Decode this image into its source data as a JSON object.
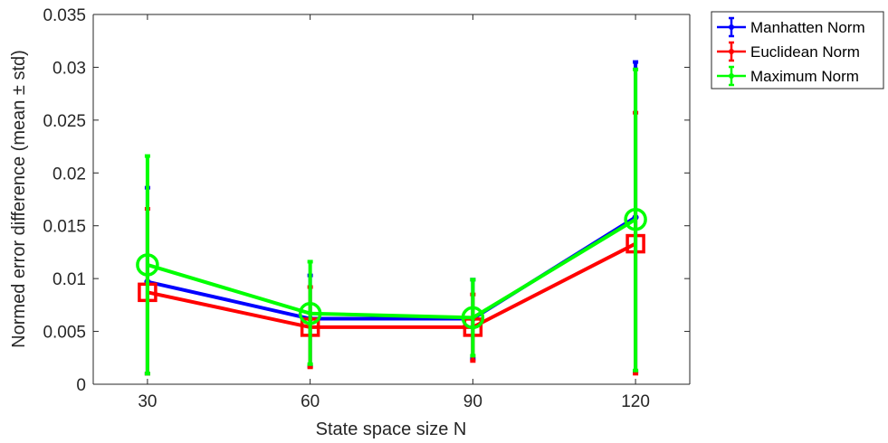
{
  "chart_data": {
    "type": "line",
    "title": "",
    "xlabel": "State space size N",
    "ylabel": "Normed error difference (mean ± std)",
    "categories": [
      "30",
      "60",
      "90",
      "120"
    ],
    "x": [
      30,
      60,
      90,
      120
    ],
    "xlim": [
      20,
      130
    ],
    "ylim": [
      0,
      0.035
    ],
    "yticks": [
      0,
      0.005,
      0.01,
      0.015,
      0.02,
      0.025,
      0.03,
      0.035
    ],
    "ytick_labels": [
      "0",
      "0.005",
      "0.01",
      "0.015",
      "0.02",
      "0.025",
      "0.03",
      "0.035"
    ],
    "grid": false,
    "legend_position": "outside-top-right",
    "series": [
      {
        "name": "Manhatten Norm",
        "color": "#0000ff",
        "marker": "point",
        "values": [
          0.0097,
          0.0062,
          0.0062,
          0.0158
        ],
        "std_lower": [
          0.001,
          0.0017,
          0.0024,
          0.0012
        ],
        "std_upper": [
          0.0186,
          0.0103,
          0.0099,
          0.0305
        ]
      },
      {
        "name": "Euclidean Norm",
        "color": "#ff0000",
        "marker": "square",
        "values": [
          0.0087,
          0.0054,
          0.0054,
          0.0133
        ],
        "std_lower": [
          0.001,
          0.0016,
          0.0022,
          0.001
        ],
        "std_upper": [
          0.0166,
          0.0092,
          0.0085,
          0.0257
        ]
      },
      {
        "name": "Maximum Norm",
        "color": "#00ff00",
        "marker": "circle",
        "values": [
          0.0113,
          0.0067,
          0.0063,
          0.0156
        ],
        "std_lower": [
          0.001,
          0.0019,
          0.0027,
          0.0013
        ],
        "std_upper": [
          0.0216,
          0.0116,
          0.0099,
          0.0298
        ]
      }
    ]
  }
}
